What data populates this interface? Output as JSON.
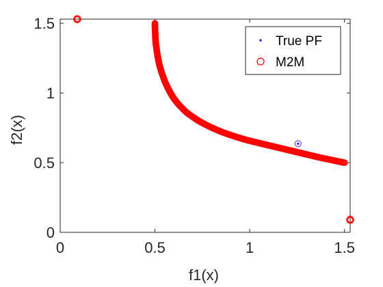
{
  "chart_data": {
    "type": "scatter",
    "xlabel": "f1(x)",
    "ylabel": "f2(x)",
    "xlim": [
      0,
      1.53
    ],
    "ylim": [
      0,
      1.53
    ],
    "x_ticks": [
      {
        "value": 0,
        "label": "0"
      },
      {
        "value": 0.5,
        "label": "0.5"
      },
      {
        "value": 1,
        "label": "1"
      },
      {
        "value": 1.5,
        "label": "1.5"
      }
    ],
    "y_ticks": [
      {
        "value": 0,
        "label": "0"
      },
      {
        "value": 0.5,
        "label": "0.5"
      },
      {
        "value": 1,
        "label": "1"
      },
      {
        "value": 1.5,
        "label": "1.5"
      }
    ],
    "grid": false,
    "legend_position": "top-right",
    "series": [
      {
        "name": "True PF",
        "marker": "dot",
        "color": "#0000ff",
        "points": [
          [
            1.255,
            0.636
          ]
        ]
      },
      {
        "name": "M2M",
        "marker": "circle",
        "color": "#ff0000",
        "points": [
          [
            0.09,
            1.53
          ],
          [
            1.53,
            0.09
          ],
          [
            0.5,
            1.5
          ],
          [
            0.5,
            1.47
          ],
          [
            0.501,
            1.44
          ],
          [
            0.502,
            1.41
          ],
          [
            0.503,
            1.38
          ],
          [
            0.505,
            1.35
          ],
          [
            0.508,
            1.32
          ],
          [
            0.511,
            1.29
          ],
          [
            0.515,
            1.26
          ],
          [
            0.519,
            1.23
          ],
          [
            0.524,
            1.2
          ],
          [
            0.53,
            1.17
          ],
          [
            0.537,
            1.14
          ],
          [
            0.545,
            1.11
          ],
          [
            0.553,
            1.08
          ],
          [
            0.563,
            1.05
          ],
          [
            0.574,
            1.02
          ],
          [
            0.586,
            0.99
          ],
          [
            0.6,
            0.96
          ],
          [
            0.614,
            0.935
          ],
          [
            0.63,
            0.91
          ],
          [
            0.648,
            0.885
          ],
          [
            0.667,
            0.86
          ],
          [
            0.689,
            0.838
          ],
          [
            0.712,
            0.816
          ],
          [
            0.737,
            0.795
          ],
          [
            0.764,
            0.775
          ],
          [
            0.794,
            0.755
          ],
          [
            0.826,
            0.735
          ],
          [
            0.861,
            0.716
          ],
          [
            0.899,
            0.698
          ],
          [
            0.94,
            0.68
          ],
          [
            0.985,
            0.662
          ],
          [
            1.03,
            0.647
          ],
          [
            1.07,
            0.634
          ],
          [
            1.11,
            0.621
          ],
          [
            1.15,
            0.608
          ],
          [
            1.19,
            0.595
          ],
          [
            1.23,
            0.582
          ],
          [
            1.27,
            0.569
          ],
          [
            1.31,
            0.556
          ],
          [
            1.35,
            0.543
          ],
          [
            1.39,
            0.531
          ],
          [
            1.43,
            0.52
          ],
          [
            1.46,
            0.511
          ],
          [
            1.48,
            0.505
          ],
          [
            1.5,
            0.5
          ]
        ]
      }
    ]
  }
}
